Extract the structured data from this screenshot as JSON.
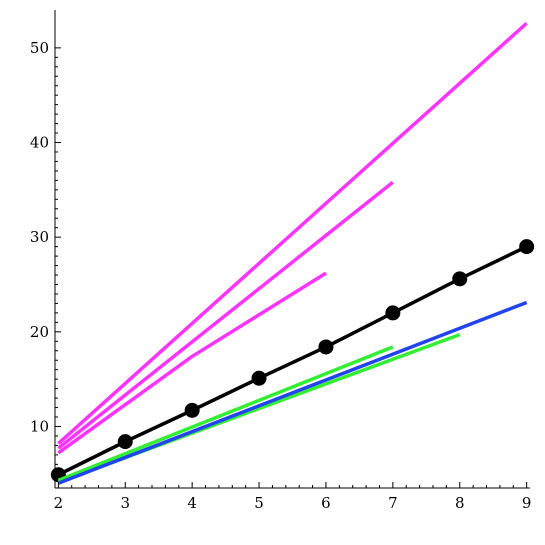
{
  "chart_data": {
    "type": "line",
    "title": "",
    "xlabel": "",
    "ylabel": "",
    "xlim": [
      1.95,
      9.05
    ],
    "ylim": [
      3.5,
      54.0
    ],
    "x_ticks": [
      2,
      3,
      4,
      5,
      6,
      7,
      8,
      9
    ],
    "y_ticks": [
      10,
      20,
      30,
      40,
      50
    ],
    "grid": false,
    "legend": "none",
    "series": [
      {
        "color": "#ff33ff",
        "points": [
          [
            2,
            8.2
          ],
          [
            9,
            52.6
          ]
        ]
      },
      {
        "color": "#ff33ff",
        "points": [
          [
            2,
            7.7
          ],
          [
            7,
            35.8
          ]
        ]
      },
      {
        "color": "#ff33ff",
        "points": [
          [
            2,
            7.2
          ],
          [
            4,
            17.4
          ],
          [
            6,
            26.2
          ]
        ]
      },
      {
        "color": "#000000",
        "markers": true,
        "points": [
          [
            2,
            4.9
          ],
          [
            3,
            8.4
          ],
          [
            4,
            11.7
          ],
          [
            5,
            15.1
          ],
          [
            6,
            18.4
          ],
          [
            7,
            22.0
          ],
          [
            8,
            25.6
          ],
          [
            9,
            29.0
          ]
        ]
      },
      {
        "color": "#33ee33",
        "points": [
          [
            2,
            4.3
          ],
          [
            7,
            18.4
          ]
        ]
      },
      {
        "color": "#33ee33",
        "points": [
          [
            2,
            4.1
          ],
          [
            8,
            19.7
          ]
        ]
      },
      {
        "color": "#2244ee",
        "points": [
          [
            2,
            4.0
          ],
          [
            9,
            23.1
          ]
        ]
      }
    ]
  }
}
